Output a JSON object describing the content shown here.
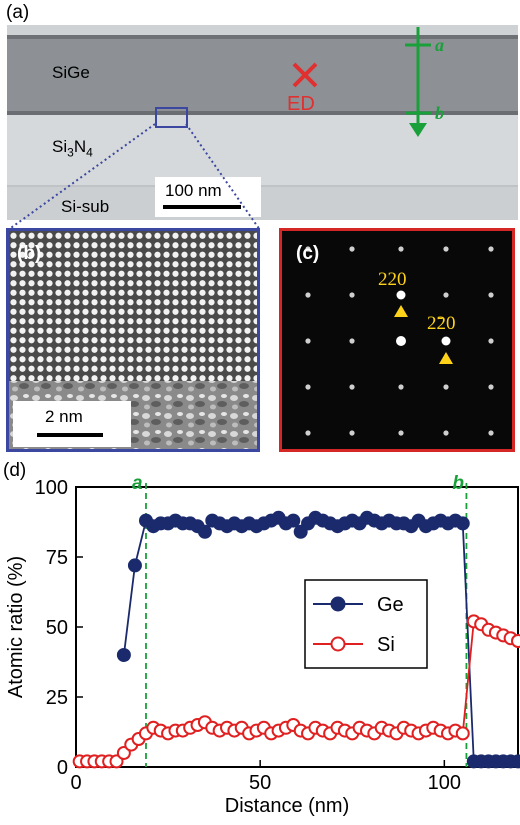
{
  "panels": {
    "a": {
      "label": "(a)",
      "layers": {
        "sige": "SiGe",
        "si3n4_base": "Si",
        "si3n4_sub3": "3",
        "si3n4_mid": "N",
        "si3n4_sub4": "4",
        "sisub": "Si-sub"
      },
      "ed_marker": "ED",
      "line_a": "a",
      "line_b": "b",
      "scalebar": "100 nm"
    },
    "b": {
      "label": "(b)",
      "scalebar": "2 nm"
    },
    "c": {
      "label": "(c)",
      "spot1": "220",
      "spot2": "220"
    },
    "d": {
      "label": "(d)"
    }
  },
  "chart_data": {
    "type": "line",
    "xlabel": "Distance (nm)",
    "ylabel": "Atomic ratio (%)",
    "xlim": [
      0,
      120
    ],
    "ylim": [
      0,
      100
    ],
    "xticks": [
      0,
      50,
      100
    ],
    "yticks": [
      0,
      25,
      50,
      75,
      100
    ],
    "grid": false,
    "legend_position": "center-right",
    "markers": [
      {
        "label": "a",
        "x": 19
      },
      {
        "label": "b",
        "x": 106
      }
    ],
    "series": [
      {
        "name": "Ge",
        "color": "#1a2a6c",
        "marker": "filled-circle",
        "x": [
          13,
          16,
          19,
          21,
          23,
          25,
          27,
          29,
          31,
          33,
          35,
          37,
          39,
          41,
          43,
          45,
          47,
          49,
          51,
          53,
          55,
          57,
          59,
          61,
          63,
          65,
          67,
          69,
          71,
          73,
          75,
          77,
          79,
          81,
          83,
          85,
          87,
          89,
          91,
          93,
          95,
          97,
          99,
          101,
          103,
          105,
          108,
          110,
          112,
          114,
          116,
          118,
          120
        ],
        "y": [
          40,
          72,
          88,
          86,
          87,
          87,
          88,
          87,
          87,
          86,
          84,
          88,
          87,
          86,
          87,
          86,
          87,
          86,
          87,
          88,
          89,
          87,
          88,
          84,
          87,
          89,
          88,
          87,
          86,
          87,
          88,
          87,
          89,
          88,
          87,
          88,
          87,
          87,
          86,
          88,
          86,
          87,
          88,
          87,
          88,
          87,
          2,
          2,
          2,
          2,
          2,
          2,
          2
        ]
      },
      {
        "name": "Si",
        "color": "#e02020",
        "marker": "open-circle",
        "x": [
          1,
          3,
          5,
          7,
          9,
          11,
          13,
          15,
          17,
          19,
          21,
          23,
          25,
          27,
          29,
          31,
          33,
          35,
          37,
          39,
          41,
          43,
          45,
          47,
          49,
          51,
          53,
          55,
          57,
          59,
          61,
          63,
          65,
          67,
          69,
          71,
          73,
          75,
          77,
          79,
          81,
          83,
          85,
          87,
          89,
          91,
          93,
          95,
          97,
          99,
          101,
          103,
          105,
          108,
          110,
          112,
          114,
          116,
          118,
          120
        ],
        "y": [
          2,
          2,
          2,
          2,
          2,
          2,
          5,
          8,
          10,
          12,
          14,
          13,
          12,
          13,
          13,
          14,
          15,
          16,
          14,
          13,
          14,
          13,
          14,
          12,
          13,
          14,
          12,
          13,
          14,
          15,
          13,
          12,
          14,
          13,
          12,
          14,
          13,
          12,
          14,
          13,
          12,
          14,
          13,
          12,
          14,
          13,
          12,
          13,
          14,
          13,
          12,
          13,
          12,
          52,
          51,
          49,
          48,
          47,
          46,
          45
        ]
      }
    ]
  }
}
